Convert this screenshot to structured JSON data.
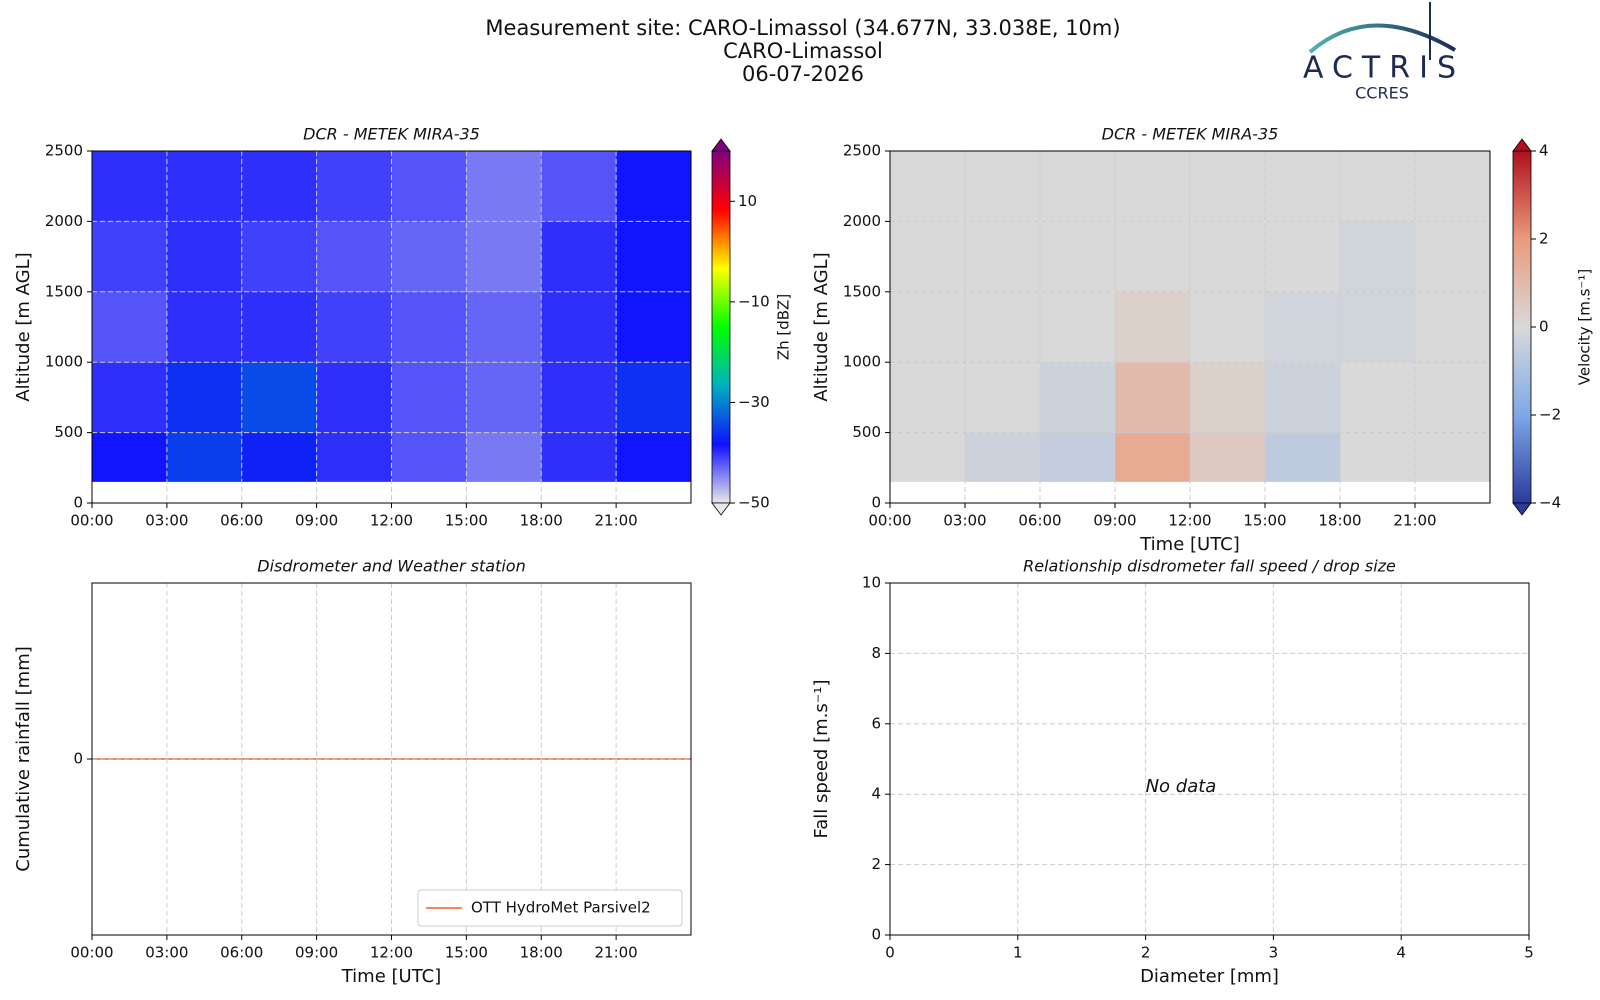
{
  "header": {
    "lines": [
      "Measurement site: CARO-Limassol (34.677N, 33.038E, 10m)",
      "CARO-Limassol",
      "06-07-2026"
    ],
    "logo": "ACTRIS",
    "logo_sub": "CCRES"
  },
  "chart_data": [
    {
      "type": "heatmap",
      "title": "DCR - METEK MIRA-35",
      "ylabel": "Altitude [m AGL]",
      "x_edges": [
        0,
        3,
        6,
        9,
        12,
        15,
        18,
        21,
        24
      ],
      "y_edges": [
        150,
        500,
        1000,
        1500,
        2000,
        2500
      ],
      "z": [
        [
          -38,
          -35,
          -37,
          -40,
          -42,
          -44,
          -40,
          -38
        ],
        [
          -40,
          -36,
          -34,
          -40,
          -42,
          -43,
          -40,
          -36
        ],
        [
          -42,
          -40,
          -40,
          -41,
          -42,
          -43,
          -40,
          -38
        ],
        [
          -41,
          -40,
          -41,
          -42,
          -43,
          -44,
          -40,
          -38
        ],
        [
          -40,
          -40,
          -40,
          -41,
          -42,
          -44,
          -42,
          -38
        ]
      ],
      "xlim": [
        0,
        24
      ],
      "ylim": [
        0,
        2500
      ],
      "xticks": [
        {
          "value": 0,
          "label": "00:00"
        },
        {
          "value": 3,
          "label": "03:00"
        },
        {
          "value": 6,
          "label": "06:00"
        },
        {
          "value": 9,
          "label": "09:00"
        },
        {
          "value": 12,
          "label": "12:00"
        },
        {
          "value": 15,
          "label": "15:00"
        },
        {
          "value": 18,
          "label": "18:00"
        },
        {
          "value": 21,
          "label": "21:00"
        }
      ],
      "yticks": [
        0,
        500,
        1000,
        1500,
        2000,
        2500
      ],
      "zlim": [
        -50,
        20
      ],
      "cbar_ticks": [
        {
          "value": -50,
          "label": "−50"
        },
        {
          "value": -30,
          "label": "−30"
        },
        {
          "value": -10,
          "label": "−10"
        },
        10
      ],
      "cbar_label": "Zh [dBZ]",
      "colormap": [
        "#e8e8e8",
        "#1010ff",
        "#00b0c0",
        "#00ff00",
        "#ffff00",
        "#ff0000",
        "#800080"
      ],
      "grid": true
    },
    {
      "type": "heatmap",
      "title": "DCR - METEK MIRA-35",
      "xlabel": "Time [UTC]",
      "ylabel": "Altitude [m AGL]",
      "x_edges": [
        0,
        3,
        6,
        9,
        12,
        15,
        18,
        21,
        24
      ],
      "y_edges": [
        150,
        500,
        1000,
        1500,
        2000,
        2500
      ],
      "z": [
        [
          0,
          -0.3,
          -0.5,
          1.5,
          0.5,
          -0.6,
          0,
          0
        ],
        [
          0,
          0,
          -0.3,
          1,
          0.3,
          -0.3,
          0,
          0
        ],
        [
          0,
          0,
          0,
          0.3,
          0,
          -0.2,
          -0.2,
          0
        ],
        [
          0,
          0,
          0,
          0,
          0,
          0,
          -0.2,
          0
        ],
        [
          0,
          0,
          0,
          0,
          0,
          0,
          0,
          0
        ]
      ],
      "xlim": [
        0,
        24
      ],
      "ylim": [
        0,
        2500
      ],
      "xticks": [
        {
          "value": 0,
          "label": "00:00"
        },
        {
          "value": 3,
          "label": "03:00"
        },
        {
          "value": 6,
          "label": "06:00"
        },
        {
          "value": 9,
          "label": "09:00"
        },
        {
          "value": 12,
          "label": "12:00"
        },
        {
          "value": 15,
          "label": "15:00"
        },
        {
          "value": 18,
          "label": "18:00"
        },
        {
          "value": 21,
          "label": "21:00"
        }
      ],
      "yticks": [
        0,
        500,
        1000,
        1500,
        2000,
        2500
      ],
      "zlim": [
        -4,
        4
      ],
      "cbar_ticks": [
        {
          "value": -4,
          "label": "−4"
        },
        {
          "value": -2,
          "label": "−2"
        },
        0,
        2,
        4
      ],
      "cbar_label": "Velocity [m.s⁻¹]",
      "colormap": [
        "#2a3a9e",
        "#7fa8e8",
        "#d9d9d9",
        "#eb9a7c",
        "#b0101e"
      ],
      "grid": true
    },
    {
      "type": "line",
      "title": "Disdrometer and Weather station",
      "xlabel": "Time [UTC]",
      "ylabel": "Cumulative rainfall [mm]",
      "x": [
        0,
        24
      ],
      "series": [
        {
          "name": "OTT HydroMet Parsivel2",
          "color": "#f0865a",
          "values": [
            0,
            0
          ]
        }
      ],
      "xlim": [
        0,
        24
      ],
      "ylim": [
        -0.055,
        0.055
      ],
      "xticks": [
        {
          "value": 0,
          "label": "00:00"
        },
        {
          "value": 3,
          "label": "03:00"
        },
        {
          "value": 6,
          "label": "06:00"
        },
        {
          "value": 9,
          "label": "09:00"
        },
        {
          "value": 12,
          "label": "12:00"
        },
        {
          "value": 15,
          "label": "15:00"
        },
        {
          "value": 18,
          "label": "18:00"
        },
        {
          "value": 21,
          "label": "21:00"
        }
      ],
      "yticks": [
        0
      ],
      "grid": true,
      "legend": "lower right"
    },
    {
      "type": "scatter",
      "title": "Relationship disdrometer fall speed / drop size",
      "xlabel": "Diameter [mm]",
      "ylabel": "Fall speed [m.s⁻¹]",
      "annotation": "No data",
      "xlim": [
        0,
        5
      ],
      "ylim": [
        0,
        10
      ],
      "xticks": [
        0,
        1,
        2,
        3,
        4,
        5
      ],
      "yticks": [
        0,
        2,
        4,
        6,
        8,
        10
      ],
      "grid": true
    }
  ]
}
